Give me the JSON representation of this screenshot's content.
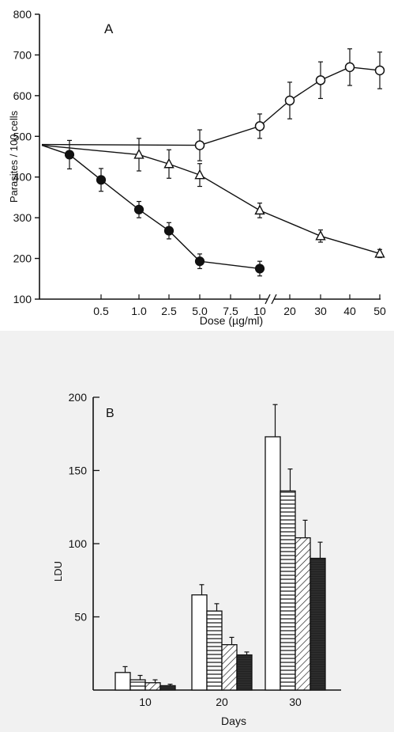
{
  "chart_data": [
    {
      "type": "line",
      "panel_label": "A",
      "ylabel": "Parasites / 100 cells",
      "xlabel": "Dose (µg/ml)",
      "yticks": [
        "100",
        "200",
        "300",
        "400",
        "500",
        "600",
        "700",
        "800"
      ],
      "ylim": [
        100,
        800
      ],
      "x_ticks": [
        "0.5",
        "1.0",
        "2.5",
        "5.0",
        "7.5",
        "10",
        "20",
        "30",
        "40",
        "50"
      ],
      "axis_break_after": "10",
      "series": [
        {
          "marker": "open-circle",
          "x": [
            "0",
            "5.0",
            "10",
            "20",
            "30",
            "40",
            "50"
          ],
          "y": [
            480,
            478,
            525,
            588,
            638,
            670,
            662
          ],
          "err": [
            0,
            38,
            30,
            45,
            45,
            45,
            45
          ]
        },
        {
          "marker": "open-triangle",
          "x": [
            "0",
            "1.0",
            "2.5",
            "5.0",
            "10",
            "30",
            "50"
          ],
          "y": [
            478,
            455,
            432,
            405,
            318,
            255,
            212
          ],
          "err": [
            0,
            40,
            35,
            28,
            18,
            15,
            10
          ]
        },
        {
          "marker": "filled-circle",
          "x": [
            "0",
            "0.25",
            "0.5",
            "1.0",
            "2.5",
            "5.0",
            "10"
          ],
          "y": [
            478,
            455,
            393,
            320,
            268,
            193,
            175
          ],
          "err": [
            0,
            35,
            28,
            20,
            20,
            18,
            18
          ]
        }
      ]
    },
    {
      "type": "bar",
      "panel_label": "B",
      "ylabel": "LDU",
      "xlabel": "Days",
      "categories": [
        "10",
        "20",
        "30"
      ],
      "yticks": [
        "50",
        "100",
        "150",
        "200"
      ],
      "ylim": [
        0,
        200
      ],
      "series": [
        {
          "pattern": "open",
          "values": [
            12,
            65,
            173
          ],
          "err": [
            4,
            7,
            22
          ]
        },
        {
          "pattern": "horizontal-hatch",
          "values": [
            7,
            54,
            136
          ],
          "err": [
            3,
            5,
            15
          ]
        },
        {
          "pattern": "diagonal-hatch",
          "values": [
            5,
            31,
            104
          ],
          "err": [
            2,
            5,
            12
          ]
        },
        {
          "pattern": "solid-dark",
          "values": [
            3,
            24,
            90
          ],
          "err": [
            1,
            2,
            11
          ]
        }
      ]
    }
  ]
}
